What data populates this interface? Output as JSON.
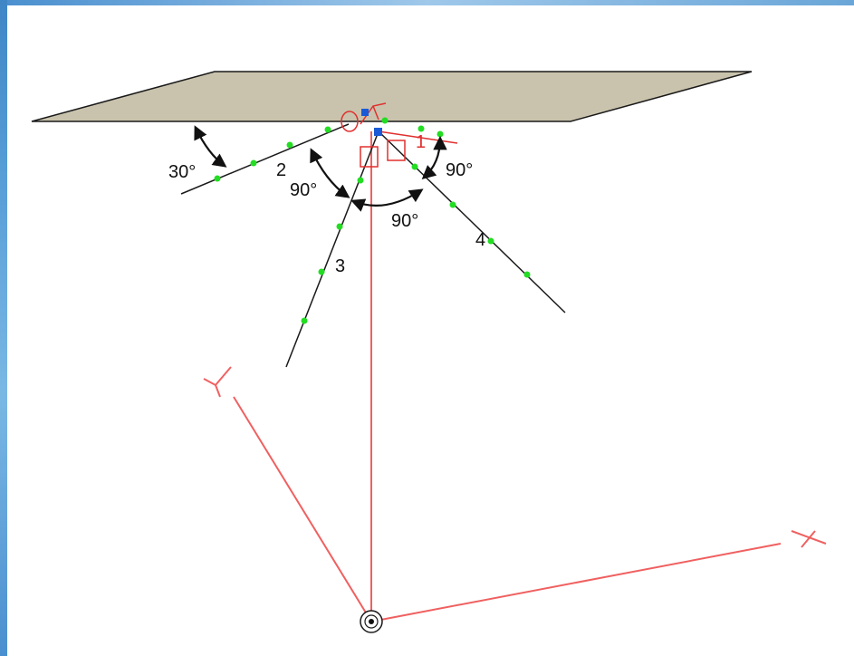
{
  "diagram": {
    "angle_labels": {
      "left_plane_angle": "30°",
      "upper_left_angle": "90°",
      "bottom_angle": "90°",
      "right_angle": "90°"
    },
    "line_labels": {
      "line_1": "1",
      "line_2": "2",
      "line_3": "3",
      "line_4": "4"
    },
    "axis_labels": {
      "x_axis": "X",
      "y_axis": "Y"
    },
    "colors": {
      "plane_fill": "#c9c3ad",
      "plane_stroke": "#1a1a1a",
      "line_stroke": "#1a1a1a",
      "axis_stroke": "#f06060",
      "red_marker": "#e0302f",
      "node_dot": "#22dd22",
      "origin_marker": "#1a5ad6"
    }
  }
}
